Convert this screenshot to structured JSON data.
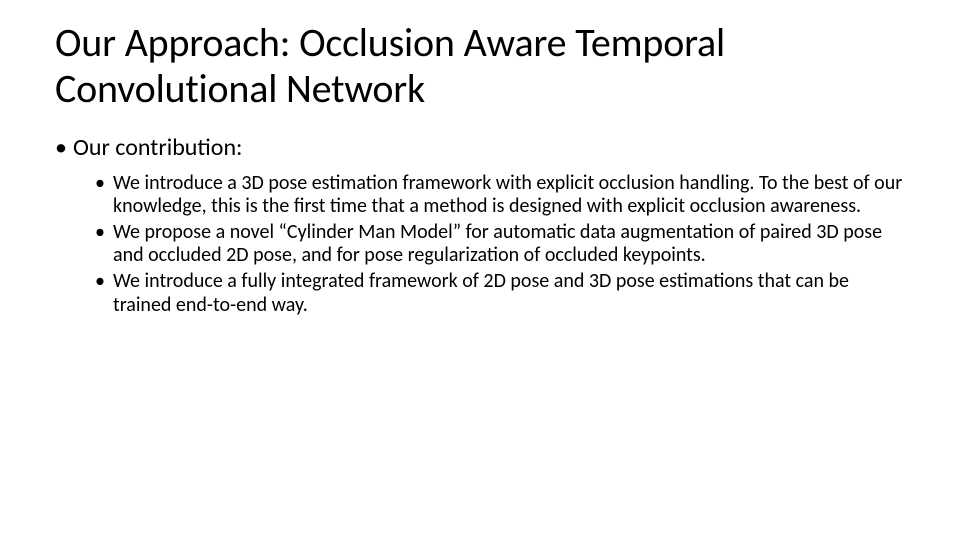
{
  "slide": {
    "title": "Our Approach: Occlusion Aware Temporal Convolutional Network",
    "level1": "Our contribution:",
    "bullets": [
      "We introduce a 3D pose estimation framework with explicit occlusion handling. To the best of our knowledge, this is the first time that a method is designed with explicit occlusion awareness.",
      "We propose a novel “Cylinder Man Model” for automatic data augmentation of paired 3D pose and occluded 2D pose, and for pose regularization of occluded keypoints.",
      "We introduce a fully integrated framework of 2D pose and 3D pose estimations that can be trained end-to-end way."
    ]
  },
  "style": {
    "background_color": "#ffffff",
    "text_color": "#000000",
    "title_fontsize": 40,
    "level1_fontsize": 24,
    "level2_fontsize": 20,
    "font_family": "Calibri"
  }
}
